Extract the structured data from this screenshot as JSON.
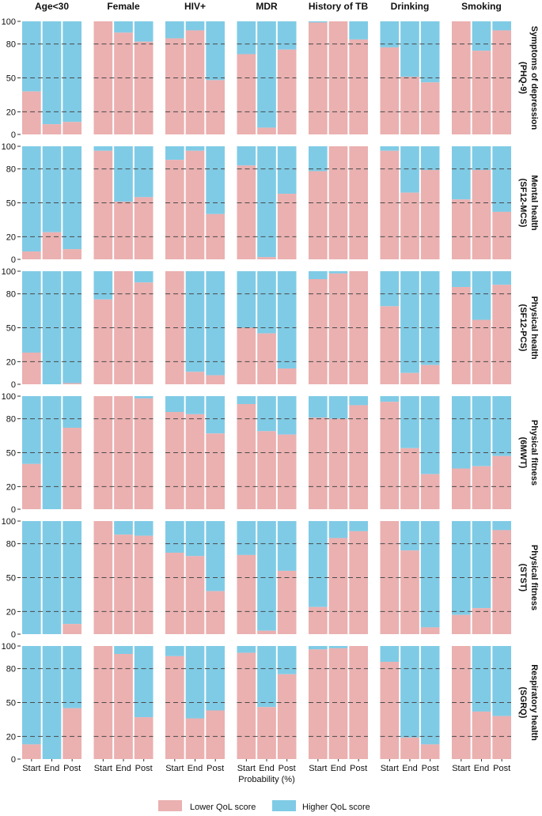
{
  "chart_data": {
    "type": "bar",
    "subtype": "stacked-100-percent-faceted",
    "column_facets": [
      "Age<30",
      "Female",
      "HIV+",
      "MDR",
      "History of TB",
      "Drinking",
      "Smoking"
    ],
    "row_facets": [
      [
        "Symptoms of depression",
        "(PHQ-9)"
      ],
      [
        "Mental health",
        "(SF12-MCS)"
      ],
      [
        "Physical health",
        "(SF12-PCS)"
      ],
      [
        "Physical fitness",
        "(6MWT)"
      ],
      [
        "Physical fitness",
        "(STST)"
      ],
      [
        "Respiratory health",
        "(SGRQ)"
      ]
    ],
    "categories": [
      "Start",
      "End",
      "Post"
    ],
    "xlabel": "Probability (%)",
    "ylim": [
      0,
      100
    ],
    "yticks": [
      0,
      20,
      50,
      80,
      100
    ],
    "grid": "dashed horizontal at 20, 50, 80",
    "legend_position": "bottom",
    "series": [
      {
        "name": "Lower QoL score",
        "color": "#EBB0B0"
      },
      {
        "name": "Higher QoL score",
        "color": "#7FCBE6"
      }
    ],
    "note": "values are the Lower QoL score share (%); Higher QoL score = 100 - value",
    "values": [
      [
        [
          38,
          9,
          11
        ],
        [
          100,
          90,
          82
        ],
        [
          85,
          92,
          48
        ],
        [
          71,
          6,
          75
        ],
        [
          99,
          100,
          84
        ],
        [
          77,
          51,
          46
        ],
        [
          100,
          74,
          92
        ]
      ],
      [
        [
          7,
          24,
          9
        ],
        [
          96,
          51,
          55
        ],
        [
          88,
          96,
          40
        ],
        [
          83,
          2,
          58
        ],
        [
          78,
          100,
          100
        ],
        [
          96,
          59,
          79
        ],
        [
          53,
          79,
          42
        ]
      ],
      [
        [
          28,
          0,
          1
        ],
        [
          75,
          100,
          90
        ],
        [
          100,
          11,
          8
        ],
        [
          50,
          45,
          14
        ],
        [
          93,
          98,
          100
        ],
        [
          69,
          10,
          17
        ],
        [
          86,
          57,
          88
        ]
      ],
      [
        [
          40,
          0,
          72
        ],
        [
          100,
          100,
          98
        ],
        [
          86,
          84,
          67
        ],
        [
          93,
          69,
          66
        ],
        [
          81,
          80,
          92
        ],
        [
          95,
          54,
          31
        ],
        [
          36,
          38,
          47
        ]
      ],
      [
        [
          0,
          0,
          9
        ],
        [
          100,
          88,
          87
        ],
        [
          72,
          69,
          38
        ],
        [
          70,
          3,
          56
        ],
        [
          24,
          85,
          91
        ],
        [
          100,
          74,
          6
        ],
        [
          17,
          23,
          92
        ]
      ],
      [
        [
          13,
          0,
          45
        ],
        [
          100,
          93,
          37
        ],
        [
          91,
          36,
          43
        ],
        [
          94,
          46,
          75
        ],
        [
          97,
          98,
          100
        ],
        [
          86,
          19,
          13
        ],
        [
          100,
          42,
          38
        ]
      ]
    ]
  }
}
